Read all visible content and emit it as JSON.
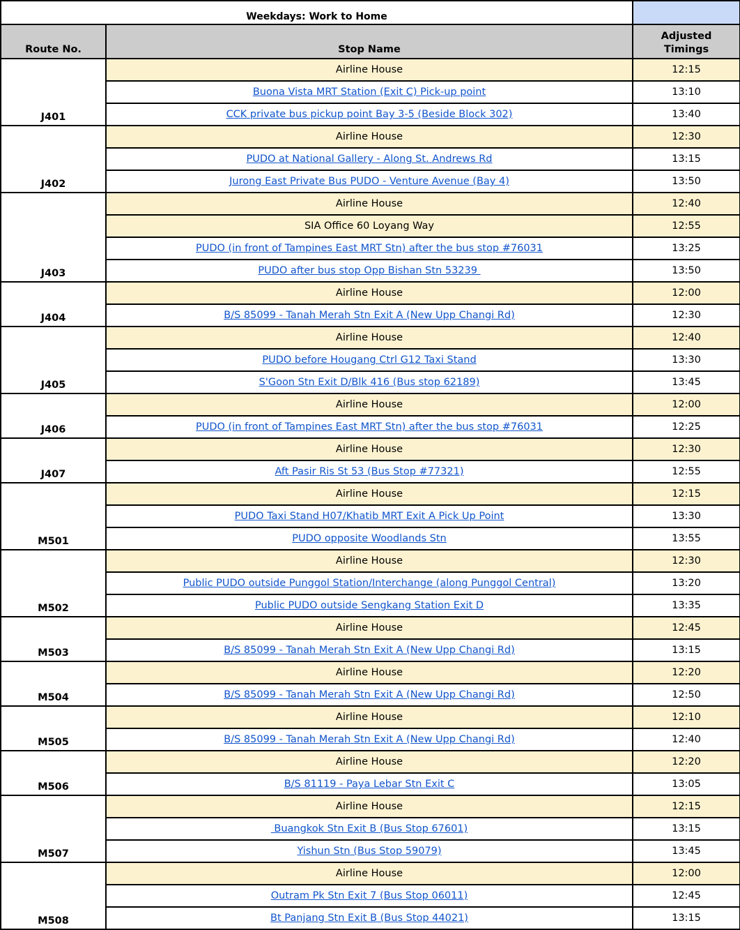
{
  "title": "Weekdays: Work to Home",
  "headers": {
    "route": "Route No.",
    "stop": "Stop Name",
    "timing": "Adjusted Timings"
  },
  "colors": {
    "highlight": "#fcf2cf",
    "header": "#cccccc",
    "title_accent": "#c9daf8",
    "link": "#1155cc"
  },
  "routes": [
    {
      "route": "J401",
      "stops": [
        {
          "name": "Airline House",
          "time": "12:15",
          "highlight": true,
          "link": false
        },
        {
          "name": "Buona Vista MRT Station (Exit C) Pick-up point",
          "time": "13:10",
          "link": true
        },
        {
          "name": "CCK private bus pickup point Bay 3-5 (Beside Block 302)",
          "time": "13:40",
          "link": true
        }
      ]
    },
    {
      "route": "J402",
      "stops": [
        {
          "name": "Airline House",
          "time": "12:30",
          "highlight": true,
          "link": false
        },
        {
          "name": "PUDO at National Gallery - Along St. Andrews Rd",
          "time": "13:15",
          "link": true
        },
        {
          "name": "Jurong East Private Bus PUDO - Venture Avenue (Bay 4)",
          "time": "13:50",
          "link": true
        }
      ]
    },
    {
      "route": "J403",
      "stops": [
        {
          "name": "Airline House",
          "time": "12:40",
          "highlight": true,
          "link": false
        },
        {
          "name": "SIA Office 60 Loyang Way",
          "time": "12:55",
          "highlight": true,
          "link": false
        },
        {
          "name": "PUDO (in front of Tampines East MRT Stn) after the bus stop #76031",
          "time": "13:25",
          "link": true
        },
        {
          "name": "PUDO after bus stop Opp Bishan Stn 53239 ",
          "time": "13:50",
          "link": true
        }
      ]
    },
    {
      "route": "J404",
      "stops": [
        {
          "name": "Airline House",
          "time": "12:00",
          "highlight": true,
          "link": false
        },
        {
          "name": "B/S 85099 - Tanah Merah Stn Exit A (New Upp Changi Rd)",
          "time": "12:30",
          "link": true
        }
      ]
    },
    {
      "route": "J405",
      "stops": [
        {
          "name": "Airline House",
          "time": "12:40",
          "highlight": true,
          "link": false
        },
        {
          "name": "PUDO before Hougang Ctrl G12 Taxi Stand",
          "time": "13:30",
          "link": true
        },
        {
          "name": "S'Goon Stn Exit D/Blk 416 (Bus stop 62189)",
          "time": "13:45",
          "link": true
        }
      ]
    },
    {
      "route": "J406",
      "stops": [
        {
          "name": "Airline House",
          "time": "12:00",
          "highlight": true,
          "link": false
        },
        {
          "name": "PUDO (in front of Tampines East MRT Stn) after the bus stop #76031",
          "time": "12:25",
          "link": true
        }
      ]
    },
    {
      "route": "J407",
      "stops": [
        {
          "name": "Airline House",
          "time": "12:30",
          "highlight": true,
          "link": false
        },
        {
          "name": "Aft Pasir Ris St 53 (Bus Stop #77321)",
          "time": "12:55",
          "link": true
        }
      ]
    },
    {
      "route": "M501",
      "stops": [
        {
          "name": "Airline House",
          "time": "12:15",
          "highlight": true,
          "link": false
        },
        {
          "name": "PUDO Taxi Stand H07/Khatib MRT Exit A Pick Up Point",
          "time": "13:30",
          "link": true
        },
        {
          "name": "PUDO opposite Woodlands Stn",
          "time": "13:55",
          "link": true
        }
      ]
    },
    {
      "route": "M502",
      "stops": [
        {
          "name": "Airline House",
          "time": "12:30",
          "highlight": true,
          "link": false
        },
        {
          "name": "Public PUDO outside Punggol Station/Interchange (along Punggol Central)",
          "time": "13:20",
          "link": true
        },
        {
          "name": "Public PUDO outside Sengkang Station Exit D",
          "time": "13:35",
          "link": true
        }
      ]
    },
    {
      "route": "M503",
      "stops": [
        {
          "name": "Airline House",
          "time": "12:45",
          "highlight": true,
          "link": false
        },
        {
          "name": "B/S 85099 - Tanah Merah Stn Exit A (New Upp Changi Rd)",
          "time": "13:15",
          "link": true
        }
      ]
    },
    {
      "route": "M504",
      "stops": [
        {
          "name": "Airline House",
          "time": "12:20",
          "highlight": true,
          "link": false
        },
        {
          "name": "B/S 85099 - Tanah Merah Stn Exit A (New Upp Changi Rd)",
          "time": "12:50",
          "link": true
        }
      ]
    },
    {
      "route": "M505",
      "stops": [
        {
          "name": "Airline House",
          "time": "12:10",
          "highlight": true,
          "link": false
        },
        {
          "name": "B/S 85099 - Tanah Merah Stn Exit A (New Upp Changi Rd)",
          "time": "12:40",
          "link": true
        }
      ]
    },
    {
      "route": "M506",
      "stops": [
        {
          "name": "Airline House",
          "time": "12:20",
          "highlight": true,
          "link": false
        },
        {
          "name": "B/S 81119 - Paya Lebar Stn Exit C",
          "time": "13:05",
          "link": true
        }
      ]
    },
    {
      "route": "M507",
      "stops": [
        {
          "name": "Airline House",
          "time": "12:15",
          "highlight": true,
          "link": false
        },
        {
          "name": " Buangkok Stn Exit B (Bus Stop 67601)",
          "time": "13:15",
          "link": true
        },
        {
          "name": "Yishun Stn (Bus Stop 59079)",
          "time": "13:45",
          "link": true
        }
      ]
    },
    {
      "route": "M508",
      "stops": [
        {
          "name": "Airline House",
          "time": "12:00",
          "highlight": true,
          "link": false
        },
        {
          "name": "Outram Pk Stn Exit 7 (Bus Stop 06011)",
          "time": "12:45",
          "link": true
        },
        {
          "name": "Bt Panjang Stn Exit B (Bus Stop 44021)",
          "time": "13:15",
          "link": true
        }
      ]
    }
  ]
}
